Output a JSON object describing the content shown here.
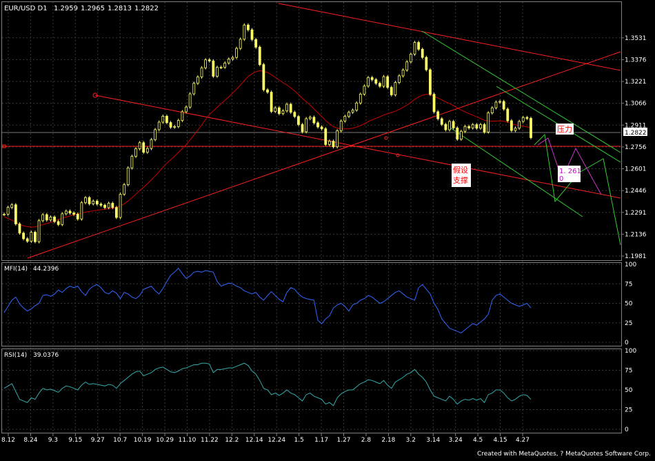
{
  "header": {
    "symbol": "EUR/USD D1",
    "open": "1.2959",
    "high": "1.2965",
    "low": "1.2813",
    "close": "1.2822"
  },
  "price_panel": {
    "current_price_label": "1.2822",
    "annotation_resistance": "压力",
    "annotation_support_line1": "假设",
    "annotation_support_line2": "支撑",
    "annotation_target_line1": "1. 261",
    "annotation_target_line2": "0"
  },
  "mfi_panel": {
    "label": "MFI(14)",
    "value": "44.2396"
  },
  "rsi_panel": {
    "label": "RSI(14)",
    "value": "39.0376"
  },
  "footer": {
    "credit": "Created with MetaQuotes, ? MetaQuotes Software Corp."
  },
  "colors": {
    "background": "#000000",
    "grid": "#3a3a3a",
    "candles": "#ffff66",
    "ma": "#cc0000",
    "trendlines": "#ff2020",
    "channel": "#33cc33",
    "projection": "#cc33cc",
    "mfi": "#3366ff",
    "rsi": "#33aaaa",
    "text": "#ffffff",
    "annotation_text": "#ff0000",
    "annotation_target_text": "#cc00cc"
  },
  "chart_data": [
    {
      "type": "line",
      "panel": "price",
      "ylim": [
        1.1981,
        1.3633
      ],
      "y_ticks": [
        "1.3531",
        "1.3376",
        "1.3221",
        "1.3066",
        "1.2911",
        "1.2756",
        "1.2601",
        "1.2446",
        "1.2291",
        "1.2136",
        "1.1981"
      ],
      "x_ticks": [
        "8.12",
        "8.24",
        "9.3",
        "9.15",
        "9.27",
        "10.7",
        "10.19",
        "10.29",
        "11.10",
        "11.22",
        "12.2",
        "12.14",
        "12.24",
        "1.5",
        "1.17",
        "1.27",
        "2.8",
        "2.18",
        "3.2",
        "3.14",
        "3.24",
        "4.5",
        "4.15",
        "4.27"
      ],
      "series": [
        {
          "values": [
            1.2278,
            1.2326,
            1.2345,
            1.2209,
            1.2144,
            1.2104,
            1.2086,
            1.215,
            1.2083,
            1.2232,
            1.2275,
            1.2237,
            1.2258,
            1.2226,
            1.2205,
            1.2281,
            1.23,
            1.2287,
            1.2278,
            1.2244,
            1.236,
            1.2396,
            1.2352,
            1.2371,
            1.235,
            1.2342,
            1.2325,
            1.2356,
            1.2326,
            1.2255,
            1.242,
            1.2488,
            1.2607,
            1.2689,
            1.2743,
            1.2786,
            1.2718,
            1.2745,
            1.2808,
            1.2879,
            1.2932,
            1.2974,
            1.2929,
            1.2896,
            1.2901,
            1.2944,
            1.3006,
            1.3039,
            1.3133,
            1.3208,
            1.3253,
            1.3318,
            1.3375,
            1.3367,
            1.3258,
            1.3321,
            1.3322,
            1.3352,
            1.338,
            1.3392,
            1.3456,
            1.3521,
            1.3622,
            1.3588,
            1.3519,
            1.3465,
            1.3341,
            1.3162,
            1.3145,
            1.3008,
            1.3034,
            1.2993,
            1.3012,
            1.3059,
            1.3002,
            1.2972,
            1.2915,
            1.2864,
            1.2957,
            1.2967,
            1.2927,
            1.2898,
            1.2885,
            1.2773,
            1.2797,
            1.2757,
            1.2871,
            1.294,
            1.2973,
            1.3002,
            1.3017,
            1.3068,
            1.3131,
            1.3188,
            1.3249,
            1.3234,
            1.3208,
            1.3187,
            1.3255,
            1.3179,
            1.3126,
            1.3214,
            1.3261,
            1.3302,
            1.336,
            1.3415,
            1.3498,
            1.345,
            1.3392,
            1.3304,
            1.313,
            1.3006,
            1.2956,
            1.2916,
            1.2878,
            1.2937,
            1.2891,
            1.2811,
            1.2867,
            1.2901,
            1.2891,
            1.2914,
            1.2889,
            1.2915,
            1.2862,
            1.2998,
            1.3034,
            1.3074,
            1.3079,
            1.3025,
            1.2942,
            1.2873,
            1.2889,
            1.2937,
            1.2965,
            1.2959,
            1.2822
          ]
        },
        {
          "values": [
            1.226,
            1.2248,
            1.2236,
            1.222,
            1.2205,
            1.2196,
            1.219,
            1.2186,
            1.2188,
            1.2196,
            1.2205,
            1.2212,
            1.222,
            1.223,
            1.224,
            1.225,
            1.2258,
            1.2266,
            1.2274,
            1.228,
            1.2287,
            1.2293,
            1.2298,
            1.2303,
            1.2306,
            1.231,
            1.2314,
            1.2318,
            1.232,
            1.2326,
            1.2338,
            1.2352,
            1.2372,
            1.2395,
            1.242,
            1.2447,
            1.247,
            1.2495,
            1.2522,
            1.255,
            1.258,
            1.2612,
            1.264,
            1.2665,
            1.269,
            1.2717,
            1.2745,
            1.2773,
            1.2806,
            1.284,
            1.2876,
            1.2913,
            1.2951,
            1.2986,
            1.3012,
            1.3038,
            1.3063,
            1.3087,
            1.3112,
            1.3138,
            1.3166,
            1.3196,
            1.3228,
            1.3256,
            1.3276,
            1.329,
            1.3298,
            1.3293,
            1.3285,
            1.3268,
            1.325,
            1.3231,
            1.3212,
            1.3196,
            1.3176,
            1.3154,
            1.3128,
            1.31,
            1.3077,
            1.3052,
            1.3025,
            1.2998,
            1.2972,
            1.2944,
            1.292,
            1.29,
            1.289,
            1.2885,
            1.2884,
            1.2885,
            1.2889,
            1.2897,
            1.2908,
            1.2921,
            1.2936,
            1.2949,
            1.296,
            1.297,
            1.2983,
            1.2992,
            1.3,
            1.301,
            1.3022,
            1.3037,
            1.3054,
            1.3072,
            1.3094,
            1.3111,
            1.3124,
            1.313,
            1.3127,
            1.3116,
            1.3104,
            1.309,
            1.3075,
            1.3064,
            1.305,
            1.3033,
            1.3018,
            1.3005,
            1.2992,
            1.2982,
            1.2969,
            1.2958,
            1.2945,
            1.294,
            1.2939,
            1.294,
            1.2941,
            1.2939,
            1.2931,
            1.2922,
            1.2913,
            1.2907,
            1.2903,
            1.2899,
            1.2891
          ]
        }
      ]
    },
    {
      "type": "line",
      "panel": "MFI(14)",
      "ylim": [
        0,
        100
      ],
      "y_ticks": [
        "100",
        "75",
        "50",
        "25",
        "0"
      ],
      "series": [
        {
          "values": [
            38,
            46,
            54,
            58,
            49,
            44,
            40,
            43,
            47,
            50,
            60,
            61,
            59,
            62,
            67,
            64,
            69,
            72,
            70,
            72,
            65,
            60,
            68,
            72,
            74,
            70,
            64,
            62,
            66,
            63,
            56,
            64,
            62,
            58,
            56,
            60,
            68,
            70,
            72,
            66,
            62,
            69,
            78,
            86,
            90,
            95,
            88,
            82,
            85,
            90,
            91,
            90,
            92,
            91,
            90,
            78,
            72,
            74,
            76,
            75,
            72,
            70,
            66,
            64,
            62,
            64,
            58,
            54,
            60,
            65,
            60,
            55,
            52,
            64,
            70,
            68,
            62,
            58,
            56,
            55,
            54,
            28,
            24,
            30,
            34,
            44,
            48,
            50,
            46,
            40,
            48,
            50,
            54,
            56,
            60,
            58,
            54,
            50,
            52,
            56,
            60,
            64,
            66,
            62,
            58,
            56,
            54,
            70,
            74,
            68,
            62,
            50,
            42,
            30,
            24,
            18,
            16,
            14,
            12,
            16,
            20,
            24,
            22,
            26,
            30,
            36,
            54,
            60,
            62,
            58,
            54,
            50,
            48,
            46,
            48,
            50,
            44
          ]
        }
      ]
    },
    {
      "type": "line",
      "panel": "RSI(14)",
      "ylim": [
        0,
        100
      ],
      "y_ticks": [
        "100",
        "75",
        "50",
        "25",
        "0"
      ],
      "series": [
        {
          "values": [
            52,
            55,
            58,
            48,
            38,
            36,
            34,
            40,
            38,
            46,
            52,
            50,
            51,
            49,
            47,
            52,
            55,
            54,
            52,
            50,
            56,
            60,
            57,
            58,
            57,
            56,
            55,
            57,
            56,
            52,
            58,
            62,
            66,
            70,
            73,
            74,
            68,
            70,
            72,
            76,
            78,
            79,
            76,
            73,
            72,
            74,
            77,
            78,
            80,
            82,
            82,
            84,
            84,
            83,
            72,
            76,
            76,
            77,
            78,
            78,
            80,
            82,
            84,
            81,
            74,
            70,
            62,
            52,
            50,
            44,
            46,
            43,
            46,
            50,
            46,
            44,
            40,
            36,
            44,
            46,
            42,
            40,
            38,
            32,
            34,
            30,
            40,
            45,
            48,
            50,
            50,
            54,
            58,
            60,
            63,
            62,
            60,
            58,
            62,
            56,
            52,
            60,
            63,
            66,
            70,
            72,
            76,
            70,
            66,
            60,
            50,
            42,
            40,
            38,
            36,
            42,
            38,
            32,
            36,
            38,
            37,
            39,
            37,
            39,
            34,
            44,
            46,
            50,
            50,
            46,
            40,
            36,
            38,
            42,
            44,
            43,
            38
          ]
        }
      ]
    }
  ]
}
